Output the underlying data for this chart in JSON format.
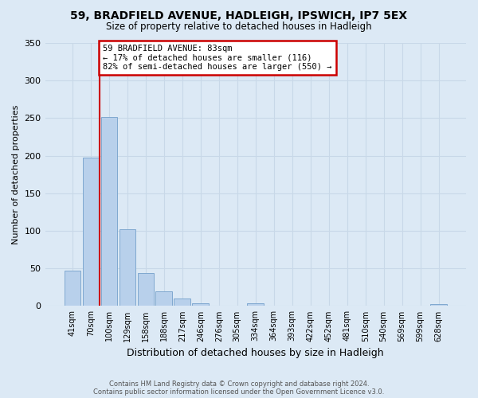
{
  "title": "59, BRADFIELD AVENUE, HADLEIGH, IPSWICH, IP7 5EX",
  "subtitle": "Size of property relative to detached houses in Hadleigh",
  "xlabel": "Distribution of detached houses by size in Hadleigh",
  "ylabel": "Number of detached properties",
  "bar_labels": [
    "41sqm",
    "70sqm",
    "100sqm",
    "129sqm",
    "158sqm",
    "188sqm",
    "217sqm",
    "246sqm",
    "276sqm",
    "305sqm",
    "334sqm",
    "364sqm",
    "393sqm",
    "422sqm",
    "452sqm",
    "481sqm",
    "510sqm",
    "540sqm",
    "569sqm",
    "599sqm",
    "628sqm"
  ],
  "bar_values": [
    47,
    197,
    252,
    102,
    44,
    19,
    10,
    4,
    0,
    0,
    4,
    0,
    0,
    0,
    0,
    0,
    0,
    0,
    0,
    0,
    3
  ],
  "bar_color": "#b8d0eb",
  "bar_edge_color": "#7fa8d0",
  "ylim": [
    0,
    350
  ],
  "yticks": [
    0,
    50,
    100,
    150,
    200,
    250,
    300,
    350
  ],
  "property_line_index": 1.5,
  "annotation_text_line1": "59 BRADFIELD AVENUE: 83sqm",
  "annotation_text_line2": "← 17% of detached houses are smaller (116)",
  "annotation_text_line3": "82% of semi-detached houses are larger (550) →",
  "annotation_box_color": "#ffffff",
  "annotation_border_color": "#cc0000",
  "property_line_color": "#cc0000",
  "grid_color": "#c8d8e8",
  "bg_color": "#dce9f5",
  "footer_line1": "Contains HM Land Registry data © Crown copyright and database right 2024.",
  "footer_line2": "Contains public sector information licensed under the Open Government Licence v3.0."
}
